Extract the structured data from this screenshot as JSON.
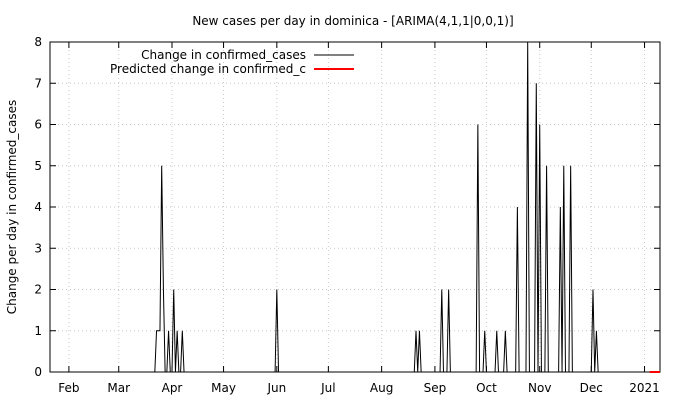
{
  "chart_data": {
    "type": "line",
    "title": "New cases per day in dominica -  [ARIMA(4,1,1|0,0,1)]",
    "xlabel": "",
    "ylabel": "Change per day in confirmed_cases",
    "ylim": [
      0,
      8
    ],
    "yticks": [
      "0",
      "1",
      "2",
      "3",
      "4",
      "5",
      "6",
      "7",
      "8"
    ],
    "xlim": [
      "2020-01-21",
      "2021-01-10"
    ],
    "xticks": [
      {
        "date": "2020-02-01",
        "label": "Feb"
      },
      {
        "date": "2020-03-01",
        "label": "Mar"
      },
      {
        "date": "2020-04-01",
        "label": "Apr"
      },
      {
        "date": "2020-05-01",
        "label": "May"
      },
      {
        "date": "2020-06-01",
        "label": "Jun"
      },
      {
        "date": "2020-07-01",
        "label": "Jul"
      },
      {
        "date": "2020-08-01",
        "label": "Aug"
      },
      {
        "date": "2020-09-01",
        "label": "Sep"
      },
      {
        "date": "2020-10-01",
        "label": "Oct"
      },
      {
        "date": "2020-11-01",
        "label": "Nov"
      },
      {
        "date": "2020-12-01",
        "label": "Dec"
      },
      {
        "date": "2021-01-01",
        "label": "2021"
      }
    ],
    "grid": true,
    "legend_position": "top-left",
    "series": [
      {
        "name": "Change in confirmed_cases",
        "color": "#000000",
        "points": [
          [
            "2020-01-21",
            0
          ],
          [
            "2020-03-22",
            0
          ],
          [
            "2020-03-23",
            1
          ],
          [
            "2020-03-24",
            1
          ],
          [
            "2020-03-25",
            1
          ],
          [
            "2020-03-26",
            5
          ],
          [
            "2020-03-27",
            2
          ],
          [
            "2020-03-28",
            0
          ],
          [
            "2020-03-29",
            0
          ],
          [
            "2020-03-30",
            1
          ],
          [
            "2020-03-31",
            0
          ],
          [
            "2020-04-01",
            0
          ],
          [
            "2020-04-02",
            2
          ],
          [
            "2020-04-03",
            0
          ],
          [
            "2020-04-04",
            1
          ],
          [
            "2020-04-05",
            0
          ],
          [
            "2020-04-06",
            0
          ],
          [
            "2020-04-07",
            1
          ],
          [
            "2020-04-08",
            0
          ],
          [
            "2020-05-31",
            0
          ],
          [
            "2020-06-01",
            2
          ],
          [
            "2020-06-02",
            0
          ],
          [
            "2020-08-20",
            0
          ],
          [
            "2020-08-21",
            1
          ],
          [
            "2020-08-22",
            0
          ],
          [
            "2020-08-23",
            1
          ],
          [
            "2020-08-24",
            0
          ],
          [
            "2020-08-30",
            0
          ],
          [
            "2020-08-31",
            0
          ],
          [
            "2020-09-04",
            0
          ],
          [
            "2020-09-05",
            2
          ],
          [
            "2020-09-06",
            0
          ],
          [
            "2020-09-08",
            0
          ],
          [
            "2020-09-09",
            2
          ],
          [
            "2020-09-10",
            0
          ],
          [
            "2020-09-25",
            0
          ],
          [
            "2020-09-26",
            6
          ],
          [
            "2020-09-27",
            0
          ],
          [
            "2020-09-29",
            0
          ],
          [
            "2020-09-30",
            1
          ],
          [
            "2020-10-01",
            0
          ],
          [
            "2020-10-06",
            0
          ],
          [
            "2020-10-07",
            1
          ],
          [
            "2020-10-08",
            0
          ],
          [
            "2020-10-11",
            0
          ],
          [
            "2020-10-12",
            1
          ],
          [
            "2020-10-13",
            0
          ],
          [
            "2020-10-18",
            0
          ],
          [
            "2020-10-19",
            4
          ],
          [
            "2020-10-20",
            0
          ],
          [
            "2020-10-24",
            0
          ],
          [
            "2020-10-25",
            8
          ],
          [
            "2020-10-26",
            0
          ],
          [
            "2020-10-29",
            0
          ],
          [
            "2020-10-30",
            7
          ],
          [
            "2020-10-31",
            0
          ],
          [
            "2020-11-01",
            6
          ],
          [
            "2020-11-02",
            0
          ],
          [
            "2020-11-04",
            0
          ],
          [
            "2020-11-05",
            5
          ],
          [
            "2020-11-06",
            0
          ],
          [
            "2020-11-12",
            0
          ],
          [
            "2020-11-13",
            4
          ],
          [
            "2020-11-14",
            0
          ],
          [
            "2020-11-15",
            5
          ],
          [
            "2020-11-16",
            0
          ],
          [
            "2020-11-18",
            0
          ],
          [
            "2020-11-19",
            5
          ],
          [
            "2020-11-20",
            0
          ],
          [
            "2020-12-01",
            0
          ],
          [
            "2020-12-02",
            2
          ],
          [
            "2020-12-03",
            0
          ],
          [
            "2020-12-04",
            1
          ],
          [
            "2020-12-05",
            0
          ],
          [
            "2021-01-04",
            0
          ]
        ]
      },
      {
        "name": "Predicted change in confirmed_c",
        "color": "#ff0000",
        "points": [
          [
            "2021-01-04",
            0
          ],
          [
            "2021-01-10",
            0
          ]
        ]
      }
    ]
  }
}
